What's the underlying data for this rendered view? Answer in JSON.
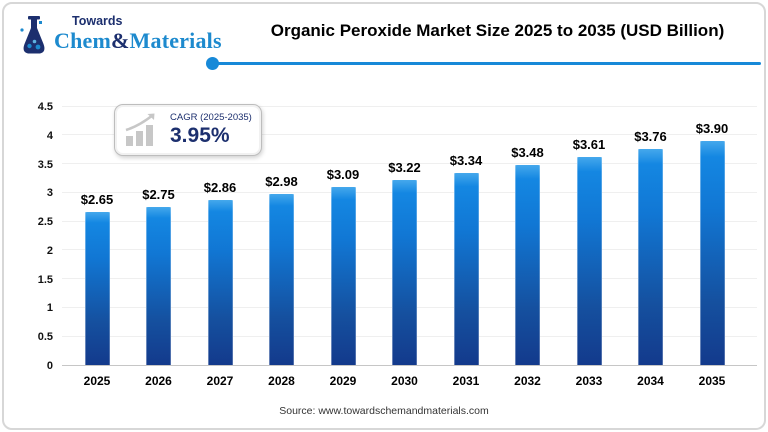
{
  "colors": {
    "navy": "#1c2f6e",
    "brand_blue": "#1d8ace",
    "divider_blue": "#1789d8",
    "bar_top": "#1487e2",
    "bar_bottom": "#133a8c",
    "icon_gray": "#c7c7c7"
  },
  "brand": {
    "towards": "Towards",
    "chem": "Chem",
    "ampersand": "&",
    "materials": "Materials"
  },
  "header": {
    "title": "Organic Peroxide Market Size 2025 to 2035 (USD Billion)"
  },
  "cagr": {
    "label": "CAGR (2025-2035)",
    "value": "3.95%"
  },
  "chart_data": {
    "type": "bar",
    "title": "Organic Peroxide Market Size 2025 to 2035 (USD Billion)",
    "categories": [
      "2025",
      "2026",
      "2027",
      "2028",
      "2029",
      "2030",
      "2031",
      "2032",
      "2033",
      "2034",
      "2035"
    ],
    "values": [
      2.65,
      2.75,
      2.86,
      2.98,
      3.09,
      3.22,
      3.34,
      3.48,
      3.61,
      3.76,
      3.9
    ],
    "labels": [
      "$2.65",
      "$2.75",
      "$2.86",
      "$2.98",
      "$3.09",
      "$3.22",
      "$3.34",
      "$3.48",
      "$3.61",
      "$3.76",
      "$3.90"
    ],
    "xlabel": "",
    "ylabel": "",
    "ylim": [
      0,
      4.5
    ],
    "ytick_step": 0.5,
    "yticks": [
      "0",
      "0.5",
      "1",
      "1.5",
      "2",
      "2.5",
      "3",
      "3.5",
      "4",
      "4.5"
    ],
    "grid": true,
    "legend": "none",
    "unit": "USD Billion"
  },
  "footer": {
    "source": "Source: www.towardschemandmaterials.com"
  }
}
